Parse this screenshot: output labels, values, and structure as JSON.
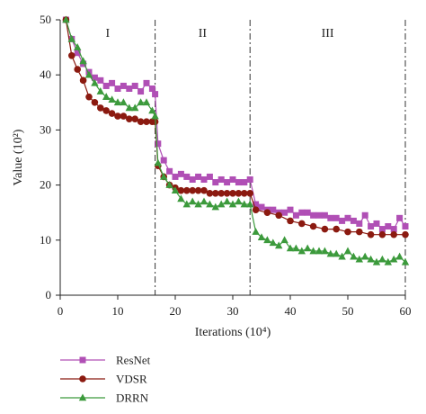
{
  "chart_data": {
    "type": "line",
    "xlabel": "Iterations (10⁴)",
    "ylabel": "Value (10²)",
    "xlim": [
      0,
      60
    ],
    "ylim": [
      0,
      50
    ],
    "xticks": [
      0,
      10,
      20,
      30,
      40,
      50,
      60
    ],
    "yticks": [
      0,
      10,
      20,
      30,
      40,
      50
    ],
    "grid": false,
    "legend_position": "bottom-left",
    "regions": [
      {
        "label": "I",
        "from": 0,
        "to": 16.5
      },
      {
        "label": "II",
        "from": 16.5,
        "to": 33
      },
      {
        "label": "III",
        "from": 33,
        "to": 60
      }
    ],
    "boundaries": [
      16.5,
      33,
      60
    ],
    "series": [
      {
        "name": "ResNet",
        "color": "#b04fb5",
        "marker": "square",
        "x": [
          1,
          2,
          3,
          4,
          5,
          6,
          7,
          8,
          9,
          10,
          11,
          12,
          13,
          14,
          15,
          16,
          16.5,
          17,
          18,
          19,
          20,
          21,
          22,
          23,
          24,
          25,
          26,
          27,
          28,
          29,
          30,
          31,
          32,
          33,
          34,
          35,
          36,
          37,
          38,
          39,
          40,
          41,
          42,
          43,
          44,
          45,
          46,
          47,
          48,
          49,
          50,
          51,
          52,
          53,
          54,
          55,
          56,
          57,
          58,
          59,
          60
        ],
        "y": [
          50,
          46.5,
          44,
          42,
          40.5,
          39.5,
          39,
          38,
          38.5,
          37.5,
          38,
          37.5,
          38,
          37,
          38.5,
          37.5,
          36.5,
          27.5,
          24.5,
          22.5,
          21.5,
          22,
          21.5,
          21,
          21.5,
          21,
          21.5,
          20.5,
          21,
          20.5,
          21,
          20.5,
          20.5,
          21,
          16.5,
          16,
          15.5,
          15.5,
          15,
          15,
          15.5,
          14.5,
          15,
          15,
          14.5,
          14.5,
          14.5,
          14,
          14,
          13.5,
          14,
          13.5,
          13,
          14.5,
          12.5,
          13,
          12,
          12.5,
          12,
          14,
          12.5
        ]
      },
      {
        "name": "VDSR",
        "color": "#8b1a10",
        "marker": "circle",
        "x": [
          1,
          2,
          3,
          4,
          5,
          6,
          7,
          8,
          9,
          10,
          11,
          12,
          13,
          14,
          15,
          16,
          16.5,
          17,
          18,
          19,
          20,
          21,
          22,
          23,
          24,
          25,
          26,
          27,
          28,
          29,
          30,
          31,
          32,
          33,
          34,
          36,
          38,
          40,
          42,
          44,
          46,
          48,
          50,
          52,
          54,
          56,
          58,
          60
        ],
        "y": [
          50,
          43.5,
          41,
          39,
          36,
          35,
          34,
          33.5,
          33,
          32.5,
          32.5,
          32,
          32,
          31.5,
          31.5,
          31.5,
          31.5,
          23.5,
          21.5,
          20,
          19.5,
          19,
          19,
          19,
          19,
          19,
          18.5,
          18.5,
          18.5,
          18.5,
          18.5,
          18.5,
          18.5,
          18.5,
          15.5,
          15,
          14.5,
          13.5,
          13,
          12.5,
          12,
          12,
          11.5,
          11.5,
          11,
          11,
          11,
          11
        ]
      },
      {
        "name": "DRRN",
        "color": "#3c9a3c",
        "marker": "triangle",
        "x": [
          1,
          2,
          3,
          4,
          5,
          6,
          7,
          8,
          9,
          10,
          11,
          12,
          13,
          14,
          15,
          16,
          16.5,
          17,
          18,
          19,
          20,
          21,
          22,
          23,
          24,
          25,
          26,
          27,
          28,
          29,
          30,
          31,
          32,
          33,
          34,
          35,
          36,
          37,
          38,
          39,
          40,
          41,
          42,
          43,
          44,
          45,
          46,
          47,
          48,
          49,
          50,
          51,
          52,
          53,
          54,
          55,
          56,
          57,
          58,
          59,
          60
        ],
        "y": [
          50,
          46.5,
          45,
          42.5,
          40,
          38.5,
          37,
          36,
          35.5,
          35,
          35,
          34,
          34,
          35,
          35,
          33.5,
          32.5,
          24,
          21.5,
          20,
          19,
          17.5,
          16.5,
          17,
          16.5,
          17,
          16.5,
          16,
          16.5,
          17,
          16.5,
          17,
          16.5,
          16.5,
          11.5,
          10.5,
          10,
          9.5,
          9,
          10,
          8.5,
          8.5,
          8,
          8.5,
          8,
          8,
          8,
          7.5,
          7.5,
          7,
          8,
          7,
          6.5,
          7,
          6.5,
          6,
          6.5,
          6,
          6.5,
          7,
          6
        ]
      }
    ]
  }
}
